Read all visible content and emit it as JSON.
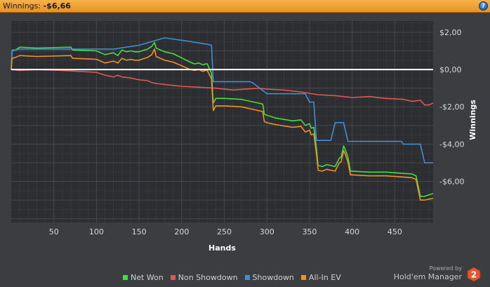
{
  "header": {
    "winnings_label": "Winnings:",
    "winnings_value": "-$6,66",
    "help_glyph": "?"
  },
  "colors": {
    "background": "#3b3d40",
    "plot_background": "#2c2e31",
    "grid": "#45484c",
    "zero_line": "#ffffff",
    "net_won": "#44dd44",
    "non_showdown": "#e05555",
    "showdown": "#3f8fd8",
    "all_in_ev": "#f0922c",
    "brand_accent": "#e4572e"
  },
  "chart_data": {
    "type": "line",
    "title": "",
    "xlabel": "Hands",
    "ylabel": "Winnings",
    "xlim": [
      0,
      495
    ],
    "ylim": [
      -8.2,
      2.6
    ],
    "xticks": [
      50,
      100,
      150,
      200,
      250,
      300,
      350,
      400,
      450
    ],
    "yticks": [
      2,
      0,
      -2,
      -4,
      -6
    ],
    "ytick_labels": [
      "$2,00",
      "$0,00",
      "-$2,00",
      "-$4,00",
      "-$6,00"
    ],
    "grid": true,
    "legend_position": "bottom",
    "series": [
      {
        "name": "Net Won",
        "color_key": "net_won",
        "x": [
          0,
          1,
          5,
          10,
          30,
          70,
          72,
          100,
          110,
          115,
          120,
          125,
          130,
          135,
          140,
          145,
          150,
          160,
          165,
          168,
          170,
          175,
          180,
          190,
          210,
          215,
          220,
          225,
          228,
          230,
          235,
          237,
          240,
          250,
          270,
          290,
          295,
          297,
          300,
          310,
          330,
          340,
          345,
          350,
          352,
          355,
          358,
          360,
          365,
          370,
          380,
          385,
          387,
          390,
          392,
          395,
          398,
          400,
          420,
          440,
          470,
          475,
          480,
          485,
          495
        ],
        "y": [
          0,
          1.0,
          1.05,
          1.2,
          1.15,
          1.2,
          1.05,
          1.0,
          0.8,
          0.85,
          0.9,
          0.75,
          1.05,
          0.95,
          1.0,
          0.95,
          0.95,
          1.1,
          1.25,
          1.45,
          1.15,
          1.05,
          0.95,
          0.85,
          0.4,
          0.3,
          0.35,
          0.25,
          0.3,
          0.3,
          -0.2,
          -1.8,
          -1.55,
          -1.55,
          -1.6,
          -1.8,
          -1.85,
          -2.4,
          -2.45,
          -2.6,
          -2.75,
          -2.7,
          -3.0,
          -2.9,
          -3.15,
          -3.1,
          -4.2,
          -5.15,
          -5.2,
          -5.1,
          -5.2,
          -4.75,
          -4.7,
          -4.1,
          -4.3,
          -4.7,
          -5.45,
          -5.45,
          -5.5,
          -5.5,
          -5.6,
          -5.7,
          -6.8,
          -6.8,
          -6.65
        ]
      },
      {
        "name": "Non Showdown",
        "color_key": "non_showdown",
        "x": [
          0,
          1,
          10,
          30,
          60,
          100,
          110,
          115,
          120,
          125,
          130,
          140,
          150,
          160,
          165,
          170,
          180,
          200,
          220,
          240,
          260,
          290,
          300,
          320,
          340,
          360,
          380,
          400,
          420,
          440,
          460,
          470,
          480,
          485,
          490,
          495
        ],
        "y": [
          0,
          0.0,
          -0.05,
          0.0,
          -0.05,
          -0.15,
          -0.3,
          -0.35,
          -0.4,
          -0.3,
          -0.4,
          -0.45,
          -0.55,
          -0.6,
          -0.7,
          -0.75,
          -0.8,
          -0.9,
          -0.95,
          -1.0,
          -1.1,
          -1.0,
          -1.05,
          -1.1,
          -1.2,
          -1.35,
          -1.4,
          -1.5,
          -1.45,
          -1.55,
          -1.6,
          -1.7,
          -1.65,
          -1.9,
          -1.9,
          -1.8
        ]
      },
      {
        "name": "Showdown",
        "color_key": "showdown",
        "x": [
          0,
          1,
          5,
          10,
          120,
          150,
          180,
          210,
          230,
          235,
          237,
          280,
          283,
          300,
          330,
          340,
          345,
          350,
          355,
          358,
          360,
          365,
          370,
          375,
          380,
          385,
          390,
          395,
          400,
          410,
          450,
          458,
          460,
          470,
          480,
          485,
          495
        ],
        "y": [
          0,
          1.05,
          1.05,
          1.1,
          1.1,
          1.3,
          1.7,
          1.5,
          1.35,
          1.3,
          -0.65,
          -0.65,
          -0.7,
          -1.3,
          -1.3,
          -1.3,
          -1.3,
          -1.75,
          -1.75,
          -3.8,
          -3.8,
          -3.8,
          -3.8,
          -3.8,
          -2.85,
          -2.85,
          -2.85,
          -3.85,
          -3.85,
          -3.85,
          -3.85,
          -3.85,
          -4.0,
          -4.0,
          -4.0,
          -5.0,
          -5.0
        ]
      },
      {
        "name": "All-In EV",
        "color_key": "all_in_ev",
        "x": [
          0,
          1,
          5,
          10,
          30,
          70,
          72,
          100,
          110,
          115,
          120,
          125,
          130,
          135,
          140,
          145,
          150,
          160,
          165,
          168,
          170,
          175,
          180,
          190,
          210,
          215,
          220,
          225,
          228,
          230,
          235,
          237,
          240,
          250,
          270,
          290,
          295,
          297,
          300,
          310,
          330,
          340,
          345,
          350,
          352,
          355,
          358,
          360,
          365,
          370,
          380,
          385,
          387,
          390,
          392,
          395,
          398,
          400,
          420,
          440,
          470,
          475,
          480,
          485,
          495
        ],
        "y": [
          0,
          0.6,
          0.65,
          0.75,
          0.7,
          0.75,
          0.6,
          0.55,
          0.35,
          0.4,
          0.45,
          0.35,
          0.6,
          0.5,
          0.55,
          0.5,
          0.5,
          0.65,
          0.8,
          1.1,
          0.7,
          0.6,
          0.5,
          0.4,
          0.0,
          -0.05,
          0.0,
          -0.1,
          -0.05,
          -0.05,
          -0.5,
          -2.2,
          -1.95,
          -1.95,
          -2.0,
          -2.2,
          -2.25,
          -2.8,
          -2.85,
          -2.95,
          -3.1,
          -3.05,
          -3.35,
          -3.25,
          -3.5,
          -3.45,
          -4.5,
          -5.4,
          -5.45,
          -5.35,
          -5.45,
          -5.0,
          -4.95,
          -4.35,
          -4.55,
          -4.95,
          -5.65,
          -5.65,
          -5.7,
          -5.7,
          -5.8,
          -5.9,
          -7.0,
          -7.0,
          -6.9
        ]
      }
    ]
  },
  "legend": {
    "items": [
      {
        "label": "Net Won"
      },
      {
        "label": "Non Showdown"
      },
      {
        "label": "Showdown"
      },
      {
        "label": "All-In EV"
      }
    ]
  },
  "brand": {
    "powered_by": "Powered by",
    "name": "Hold'em Manager",
    "logo_number": "2"
  }
}
